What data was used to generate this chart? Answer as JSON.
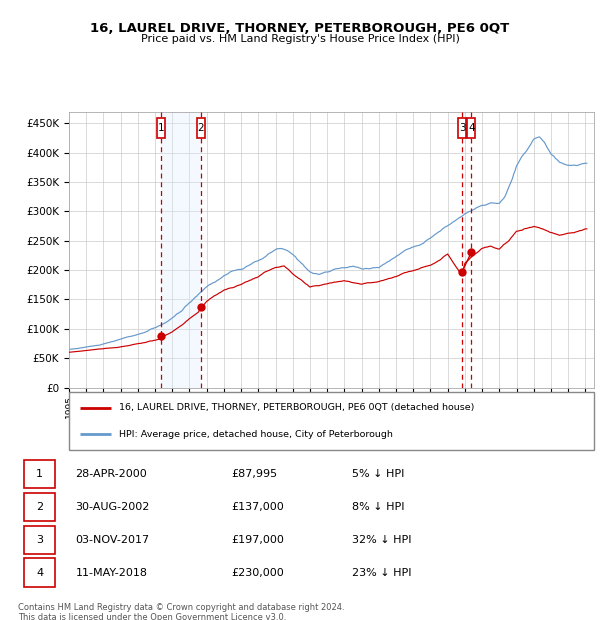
{
  "title": "16, LAUREL DRIVE, THORNEY, PETERBOROUGH, PE6 0QT",
  "subtitle": "Price paid vs. HM Land Registry's House Price Index (HPI)",
  "ylim": [
    0,
    470000
  ],
  "yticks": [
    0,
    50000,
    100000,
    150000,
    200000,
    250000,
    300000,
    350000,
    400000,
    450000
  ],
  "ytick_labels": [
    "£0",
    "£50K",
    "£100K",
    "£150K",
    "£200K",
    "£250K",
    "£300K",
    "£350K",
    "£400K",
    "£450K"
  ],
  "xmin": 1995,
  "xmax": 2025.5,
  "sales": [
    {
      "num": 1,
      "date_label": "28-APR-2000",
      "date_x": 2000.33,
      "price": 87995,
      "pct": "5% ↓ HPI"
    },
    {
      "num": 2,
      "date_label": "30-AUG-2002",
      "date_x": 2002.66,
      "price": 137000,
      "pct": "8% ↓ HPI"
    },
    {
      "num": 3,
      "date_label": "03-NOV-2017",
      "date_x": 2017.83,
      "price": 197000,
      "pct": "32% ↓ HPI"
    },
    {
      "num": 4,
      "date_label": "11-MAY-2018",
      "date_x": 2018.37,
      "price": 230000,
      "pct": "23% ↓ HPI"
    }
  ],
  "legend_red": "16, LAUREL DRIVE, THORNEY, PETERBOROUGH, PE6 0QT (detached house)",
  "legend_blue": "HPI: Average price, detached house, City of Peterborough",
  "footer": "Contains HM Land Registry data © Crown copyright and database right 2024.\nThis data is licensed under the Open Government Licence v3.0.",
  "red_color": "#cc0000",
  "blue_color": "#6699cc",
  "shade_color": "#ddeeff",
  "grid_color": "#cccccc"
}
